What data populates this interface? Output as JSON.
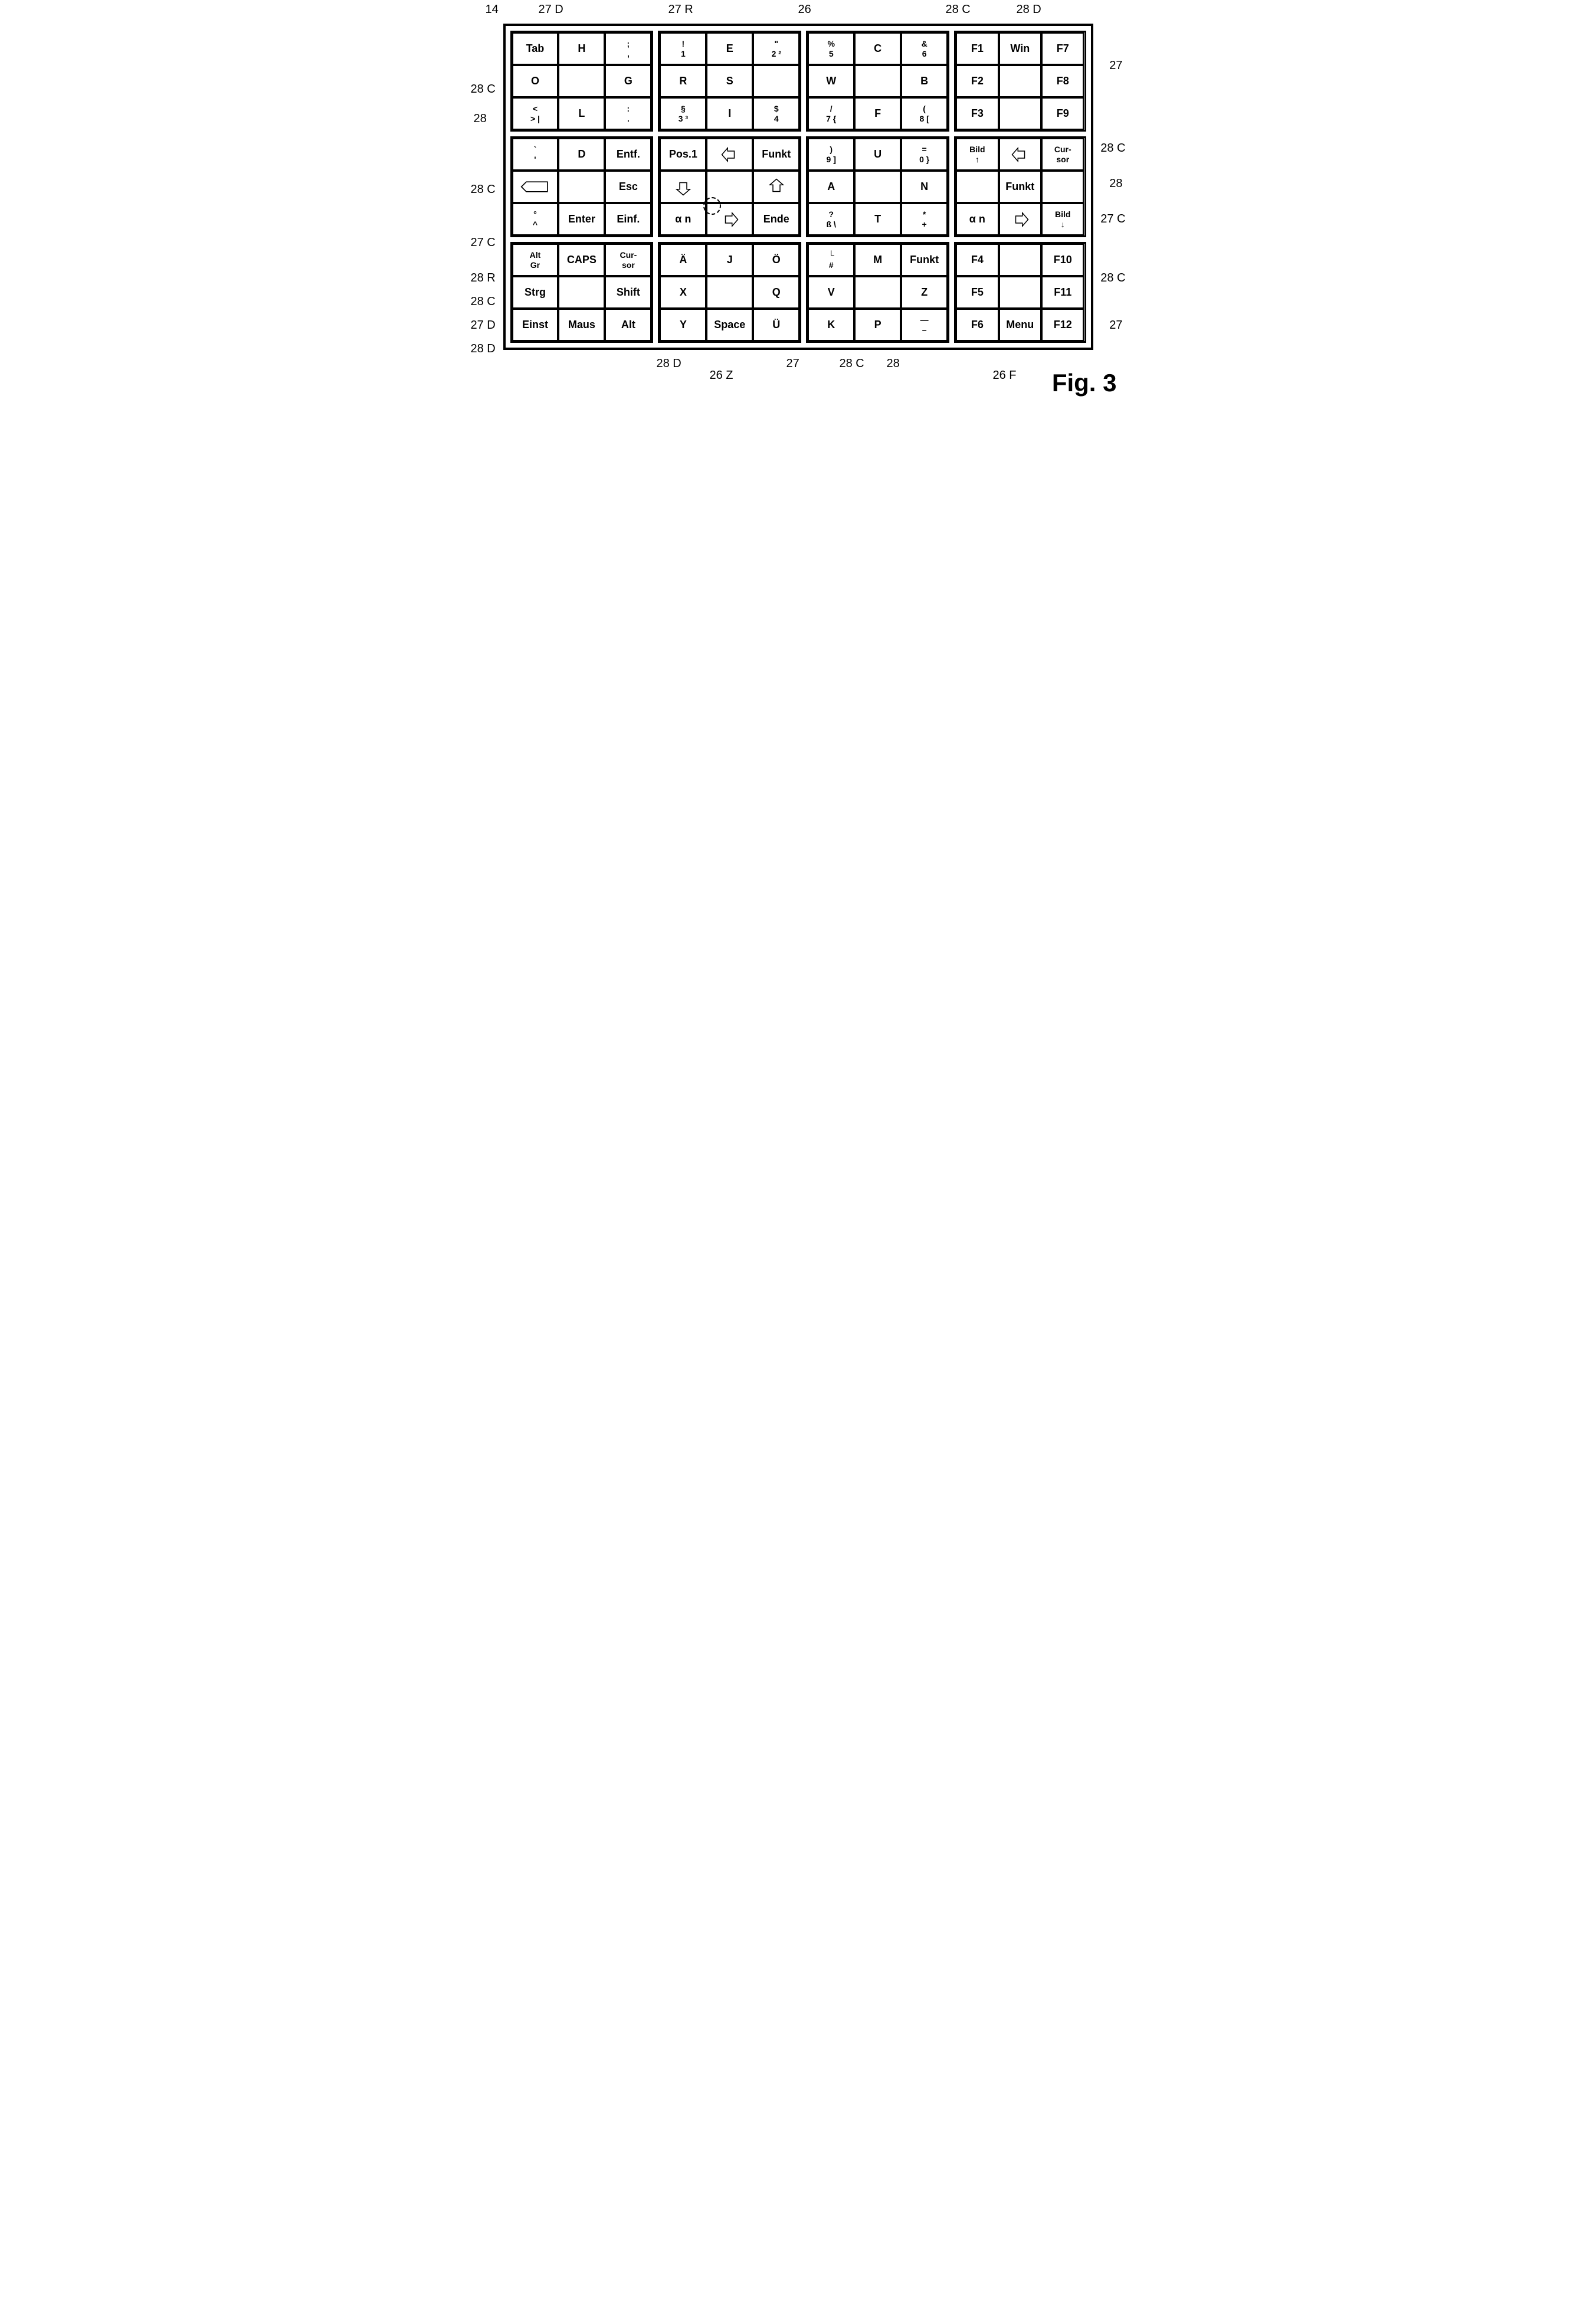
{
  "figure_label": "Fig. 3",
  "callouts": {
    "c14": "14",
    "c27D_tl": "27 D",
    "c27R_top": "27 R",
    "c26_top": "26",
    "c28C_tr": "28 C",
    "c28D_tr": "28 D",
    "c28C_left": "28 C",
    "c28_left": "28",
    "c28C_mid": "28 C",
    "c27C_mid": "27 C",
    "c28R_bl": "28 R",
    "c28C_bl": "28 C",
    "c27D_bl": "27 D",
    "c28D_bl": "28 D",
    "c28D_bot": "28 D",
    "c26Z_bot": "26 Z",
    "c27_bot": "27",
    "c28C_br": "28 C",
    "c28_br": "28",
    "c26F_bot": "26 F",
    "c27_right": "27",
    "c28C_right": "28 C",
    "c28_rr": "28",
    "c27C_rr": "27 C",
    "c28C_rr2": "28 C",
    "c27_rr2": "27"
  },
  "blocks": {
    "tl": [
      {
        "t": "Tab"
      },
      {
        "t": "H"
      },
      {
        "mt": ";",
        "mb": ","
      },
      {
        "t": "O"
      },
      {
        "t": ""
      },
      {
        "t": "G"
      },
      {
        "mt": "<",
        "mb": ">  |"
      },
      {
        "t": "L"
      },
      {
        "mt": ":",
        "mb": "."
      }
    ],
    "tm": [
      {
        "mt": "!",
        "mb": "1"
      },
      {
        "t": "E"
      },
      {
        "mt": "\"",
        "mb": "2  ²"
      },
      {
        "t": "R"
      },
      {
        "t": "S"
      },
      {
        "t": ""
      },
      {
        "mt": "§",
        "mb": "3  ³"
      },
      {
        "t": "I"
      },
      {
        "mt": "$",
        "mb": "4"
      }
    ],
    "tr": [
      {
        "mt": "%",
        "mb": "5"
      },
      {
        "t": "C"
      },
      {
        "mt": "&",
        "mb": "6"
      },
      {
        "t": "W"
      },
      {
        "t": ""
      },
      {
        "t": "B"
      },
      {
        "mt": "/",
        "mb": "7  {"
      },
      {
        "t": "F"
      },
      {
        "mt": "(",
        "mb": "8  ["
      }
    ],
    "ml": [
      {
        "mt": "`",
        "mb": "'"
      },
      {
        "t": "D"
      },
      {
        "t": "Entf."
      },
      {
        "t": "⌫"
      },
      {
        "t": ""
      },
      {
        "t": "Esc"
      },
      {
        "mt": "°",
        "mb": "^"
      },
      {
        "t": "Enter"
      },
      {
        "t": "Einf."
      }
    ],
    "mm": [
      {
        "t": "Pos.1"
      },
      {
        "t": "⇐"
      },
      {
        "t": "Funkt"
      },
      {
        "t": "⇓"
      },
      {
        "t": ""
      },
      {
        "t": "⇑"
      },
      {
        "t": "α n"
      },
      {
        "t": "⇒"
      },
      {
        "t": "Ende"
      }
    ],
    "mr": [
      {
        "mt": ")",
        "mb": "9  ]"
      },
      {
        "t": "U"
      },
      {
        "mt": "=",
        "mb": "0  }"
      },
      {
        "t": "A"
      },
      {
        "t": ""
      },
      {
        "t": "N"
      },
      {
        "mt": "?",
        "mb": "ß  \\"
      },
      {
        "t": "T"
      },
      {
        "mt": "*",
        "mb": "+"
      }
    ],
    "bl": [
      {
        "mt": "Alt",
        "mb": "Gr"
      },
      {
        "t": "CAPS"
      },
      {
        "mt": "Cur-",
        "mb": "sor"
      },
      {
        "t": "Strg"
      },
      {
        "t": ""
      },
      {
        "t": "Shift"
      },
      {
        "t": "Einst"
      },
      {
        "t": "Maus"
      },
      {
        "t": "Alt"
      }
    ],
    "bm": [
      {
        "t": "Ä"
      },
      {
        "t": "J"
      },
      {
        "t": "Ö"
      },
      {
        "t": "X"
      },
      {
        "t": ""
      },
      {
        "t": "Q"
      },
      {
        "t": "Y"
      },
      {
        "t": "Space"
      },
      {
        "t": "Ü"
      }
    ],
    "br": [
      {
        "mt": "└",
        "mb": "#"
      },
      {
        "t": "M"
      },
      {
        "t": "Funkt"
      },
      {
        "t": "V"
      },
      {
        "t": ""
      },
      {
        "t": "Z"
      },
      {
        "t": "K"
      },
      {
        "t": "P"
      },
      {
        "mt": "—",
        "mb": "–"
      }
    ],
    "f1": [
      {
        "t": "F1"
      },
      {
        "t": "Win"
      },
      {
        "t": "F7"
      },
      {
        "t": "F2"
      },
      {
        "t": ""
      },
      {
        "t": "F8"
      },
      {
        "t": "F3"
      },
      {
        "t": ""
      },
      {
        "t": "F9"
      }
    ],
    "f2": [
      {
        "mt": "Bild",
        "mb": "↑"
      },
      {
        "t": "⇐"
      },
      {
        "mt": "Cur-",
        "mb": "sor"
      },
      {
        "t": ""
      },
      {
        "t": "Funkt"
      },
      {
        "t": ""
      },
      {
        "t": "α n"
      },
      {
        "t": "⇒"
      },
      {
        "mt": "Bild",
        "mb": "↓"
      }
    ],
    "f3": [
      {
        "t": "F4"
      },
      {
        "t": ""
      },
      {
        "t": "F10"
      },
      {
        "t": "F5"
      },
      {
        "t": ""
      },
      {
        "t": "F11"
      },
      {
        "t": "F6"
      },
      {
        "t": "Menu"
      },
      {
        "t": "F12"
      }
    ]
  }
}
